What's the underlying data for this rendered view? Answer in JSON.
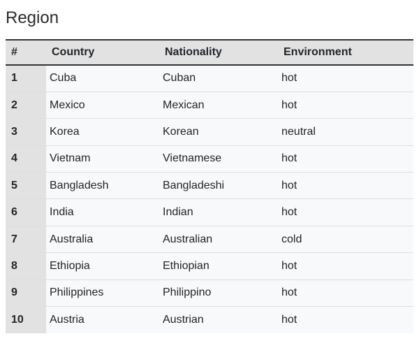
{
  "page": {
    "title": "Region"
  },
  "table": {
    "columns": [
      "#",
      "Country",
      "Nationality",
      "Environment"
    ],
    "rows": [
      {
        "index": "1",
        "country": "Cuba",
        "nationality": "Cuban",
        "environment": "hot"
      },
      {
        "index": "2",
        "country": "Mexico",
        "nationality": "Mexican",
        "environment": "hot"
      },
      {
        "index": "3",
        "country": "Korea",
        "nationality": "Korean",
        "environment": "neutral"
      },
      {
        "index": "4",
        "country": "Vietnam",
        "nationality": "Vietnamese",
        "environment": "hot"
      },
      {
        "index": "5",
        "country": "Bangladesh",
        "nationality": "Bangladeshi",
        "environment": "hot"
      },
      {
        "index": "6",
        "country": "India",
        "nationality": "Indian",
        "environment": "hot"
      },
      {
        "index": "7",
        "country": "Australia",
        "nationality": "Australian",
        "environment": "cold"
      },
      {
        "index": "8",
        "country": "Ethiopia",
        "nationality": "Ethiopian",
        "environment": "hot"
      },
      {
        "index": "9",
        "country": "Philippines",
        "nationality": "Philippino",
        "environment": "hot"
      },
      {
        "index": "10",
        "country": "Austria",
        "nationality": "Austrian",
        "environment": "hot"
      }
    ]
  },
  "colors": {
    "header_background": "#e2e2e2",
    "index_column_background": "#e2e2e2",
    "row_background": "#f8f9fa",
    "header_border": "#333333",
    "row_divider": "#dedede"
  }
}
